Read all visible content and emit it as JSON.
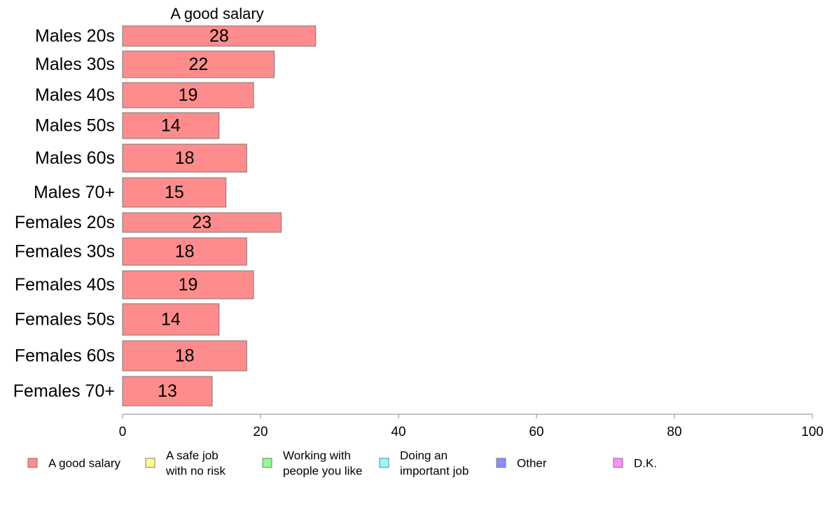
{
  "chart_data": {
    "type": "bar",
    "orientation": "horizontal",
    "title": "A good salary",
    "categories": [
      "Males 20s",
      "Males 30s",
      "Males 40s",
      "Males 50s",
      "Males 60s",
      "Males 70+",
      "Females 20s",
      "Females 30s",
      "Females 40s",
      "Females 50s",
      "Females 60s",
      "Females 70+"
    ],
    "series": [
      {
        "name": "A good salary",
        "color": "#ff8c8c",
        "values": [
          28,
          22,
          19,
          14,
          18,
          15,
          23,
          18,
          19,
          14,
          18,
          13
        ]
      }
    ],
    "xlim": [
      0,
      100
    ],
    "xticks": [
      0,
      20,
      40,
      60,
      80,
      100
    ],
    "grid": false,
    "legend_position": "bottom",
    "legend": [
      {
        "lines": [
          "A good salary"
        ],
        "color": "#ff8c8c"
      },
      {
        "lines": [
          "A safe job",
          "with no risk"
        ],
        "color": "#ffff8c"
      },
      {
        "lines": [
          "Working with",
          "people you like"
        ],
        "color": "#8cff8c"
      },
      {
        "lines": [
          "Doing an",
          "important job"
        ],
        "color": "#8cffff"
      },
      {
        "lines": [
          "Other"
        ],
        "color": "#8c8cff"
      },
      {
        "lines": [
          "D.K."
        ],
        "color": "#ff8cff"
      }
    ]
  }
}
